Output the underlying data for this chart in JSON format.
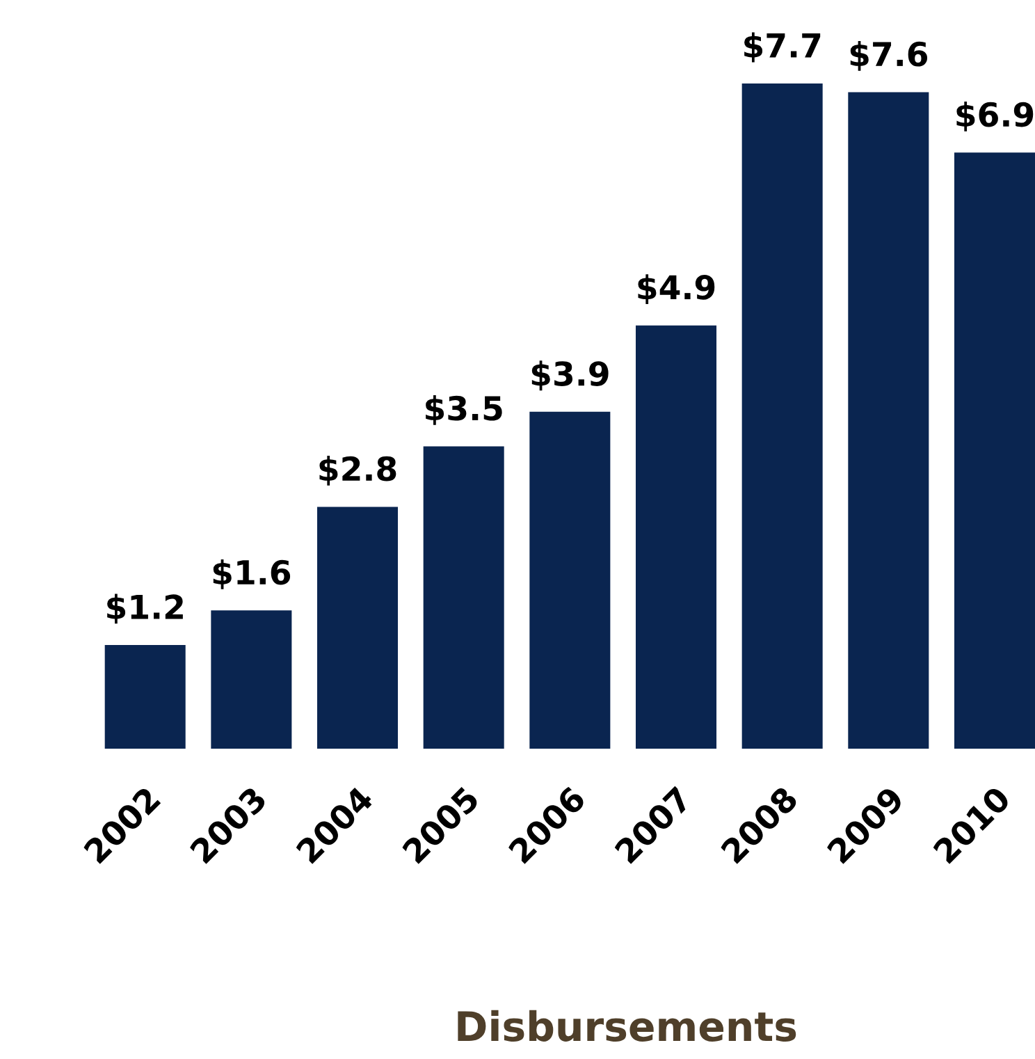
{
  "chart_data": {
    "type": "bar",
    "xlabel": "Disbursements",
    "categories": [
      "2002",
      "2003",
      "2004",
      "2005",
      "2006",
      "2007",
      "2008",
      "2009",
      "2010"
    ],
    "values": [
      1.2,
      1.6,
      2.8,
      3.5,
      3.9,
      4.9,
      7.7,
      7.6,
      6.9
    ],
    "value_labels": [
      "$1.2",
      "$1.6",
      "$2.8",
      "$3.5",
      "$3.9",
      "$4.9",
      "$7.7",
      "$7.6",
      "$6.9"
    ],
    "color": "#0a2550",
    "grid": false,
    "legend": false
  }
}
